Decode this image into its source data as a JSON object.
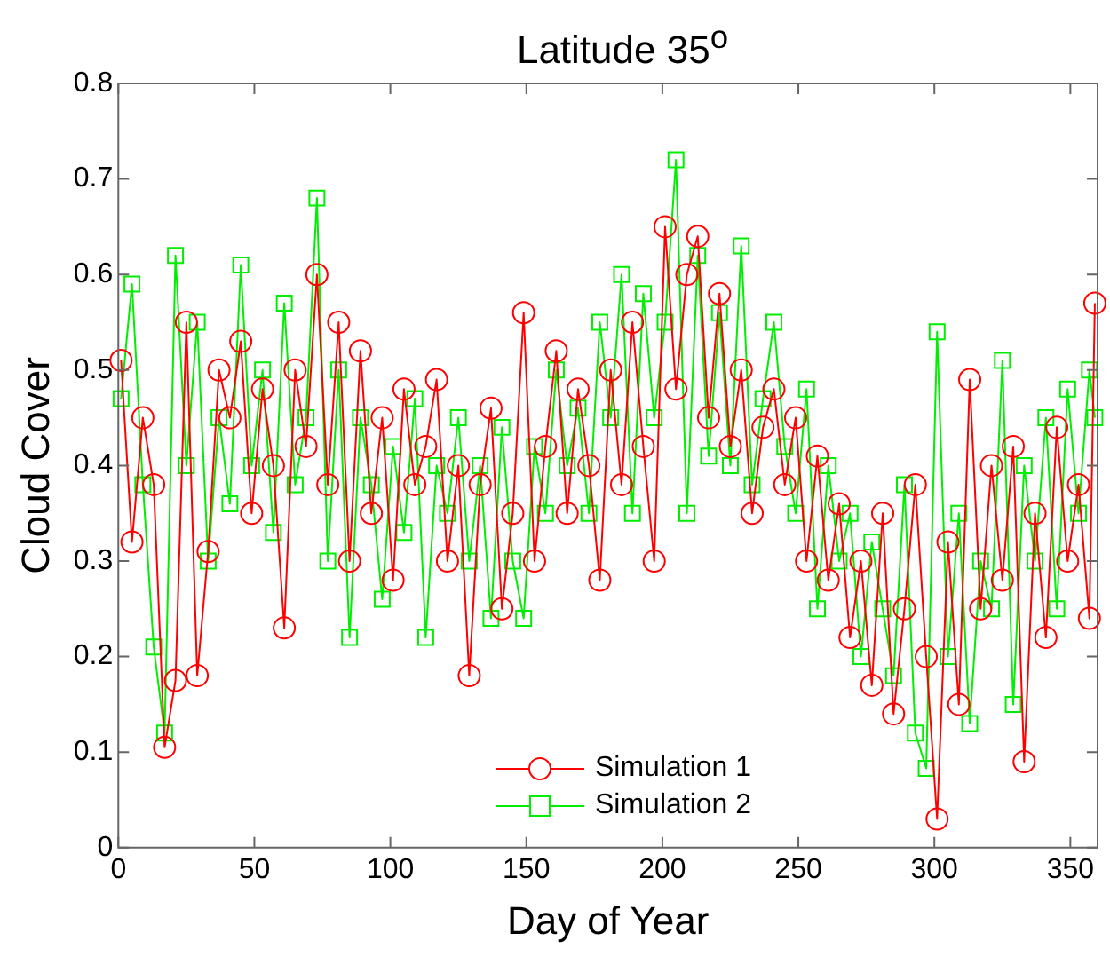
{
  "chart_data": {
    "type": "line",
    "title": "Latitude 35$^{o}$",
    "xlabel": "Day of Year",
    "ylabel": "Cloud Cover",
    "x": [
      1,
      5,
      9,
      13,
      17,
      21,
      25,
      29,
      33,
      37,
      41,
      45,
      49,
      53,
      57,
      61,
      65,
      69,
      73,
      77,
      81,
      85,
      89,
      93,
      97,
      101,
      105,
      109,
      113,
      117,
      121,
      125,
      129,
      133,
      137,
      141,
      145,
      149,
      153,
      157,
      161,
      165,
      169,
      173,
      177,
      181,
      185,
      189,
      193,
      197,
      201,
      205,
      209,
      213,
      217,
      221,
      225,
      229,
      233,
      237,
      241,
      245,
      249,
      253,
      257,
      261,
      265,
      269,
      273,
      277,
      281,
      285,
      289,
      293,
      297,
      301,
      305,
      309,
      313,
      317,
      321,
      325,
      329,
      333,
      337,
      341,
      345,
      349,
      353,
      357,
      359
    ],
    "series": [
      {
        "name": "Simulation 1",
        "color": "#ff0000",
        "marker": "circle",
        "values": [
          0.51,
          0.32,
          0.45,
          0.38,
          0.105,
          0.175,
          0.55,
          0.18,
          0.31,
          0.5,
          0.45,
          0.53,
          0.35,
          0.48,
          0.4,
          0.23,
          0.5,
          0.42,
          0.6,
          0.38,
          0.55,
          0.3,
          0.52,
          0.35,
          0.45,
          0.28,
          0.48,
          0.38,
          0.42,
          0.49,
          0.3,
          0.4,
          0.18,
          0.38,
          0.46,
          0.25,
          0.35,
          0.56,
          0.3,
          0.42,
          0.52,
          0.35,
          0.48,
          0.4,
          0.28,
          0.5,
          0.38,
          0.55,
          0.42,
          0.3,
          0.65,
          0.48,
          0.6,
          0.64,
          0.45,
          0.58,
          0.42,
          0.5,
          0.35,
          0.44,
          0.48,
          0.38,
          0.45,
          0.3,
          0.41,
          0.28,
          0.36,
          0.22,
          0.3,
          0.17,
          0.35,
          0.14,
          0.25,
          0.38,
          0.2,
          0.03,
          0.32,
          0.15,
          0.49,
          0.25,
          0.4,
          0.28,
          0.42,
          0.09,
          0.35,
          0.22,
          0.44,
          0.3,
          0.38,
          0.24,
          0.57
        ]
      },
      {
        "name": "Simulation 2",
        "color": "#00ee00",
        "marker": "square",
        "values": [
          0.47,
          0.59,
          0.38,
          0.21,
          0.12,
          0.62,
          0.4,
          0.55,
          0.3,
          0.45,
          0.36,
          0.61,
          0.4,
          0.5,
          0.33,
          0.57,
          0.38,
          0.45,
          0.68,
          0.3,
          0.5,
          0.22,
          0.45,
          0.38,
          0.26,
          0.42,
          0.33,
          0.47,
          0.22,
          0.4,
          0.35,
          0.45,
          0.3,
          0.4,
          0.24,
          0.44,
          0.3,
          0.24,
          0.42,
          0.35,
          0.5,
          0.4,
          0.46,
          0.35,
          0.55,
          0.45,
          0.6,
          0.35,
          0.58,
          0.45,
          0.55,
          0.72,
          0.35,
          0.62,
          0.41,
          0.56,
          0.4,
          0.63,
          0.38,
          0.47,
          0.55,
          0.42,
          0.35,
          0.48,
          0.25,
          0.4,
          0.3,
          0.35,
          0.2,
          0.32,
          0.25,
          0.18,
          0.38,
          0.12,
          0.083,
          0.54,
          0.2,
          0.35,
          0.13,
          0.3,
          0.25,
          0.51,
          0.15,
          0.4,
          0.3,
          0.45,
          0.25,
          0.48,
          0.35,
          0.5,
          0.45
        ]
      }
    ],
    "xlim": [
      0,
      360
    ],
    "xticks": [
      0,
      50,
      100,
      150,
      200,
      250,
      300,
      350
    ],
    "ylim": [
      0,
      0.8
    ],
    "yticks": [
      0,
      0.1,
      0.2,
      0.3,
      0.4,
      0.5,
      0.6,
      0.7,
      0.8
    ],
    "grid": false,
    "legend": "bottom"
  }
}
